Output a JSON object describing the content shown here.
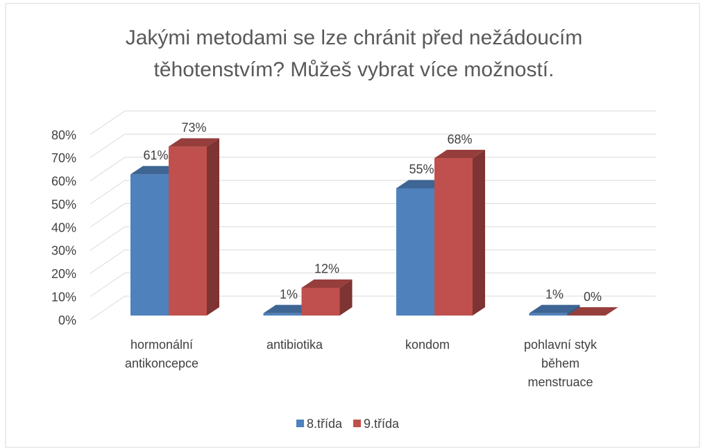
{
  "chart_data": {
    "type": "bar3d",
    "title": "Jakými metodami se lze chránit před nežádoucím těhotenstvím? Můžeš vybrat více možností.",
    "categories": [
      "hormonální antikoncepce",
      "antibiotika",
      "kondom",
      "pohlavní styk během menstruace"
    ],
    "series": [
      {
        "name": "8.třída",
        "color": "#4f81bd",
        "values": [
          61,
          1,
          55,
          1
        ],
        "value_labels": [
          "61%",
          "1%",
          "55%",
          "1%"
        ]
      },
      {
        "name": "9.třída",
        "color": "#c0504d",
        "values": [
          73,
          12,
          68,
          0
        ],
        "value_labels": [
          "73%",
          "12%",
          "68%",
          "0%"
        ]
      }
    ],
    "ylim": [
      0,
      80
    ],
    "yticks": [
      {
        "value": 0,
        "label": "0%"
      },
      {
        "value": 10,
        "label": "10%"
      },
      {
        "value": 20,
        "label": "20%"
      },
      {
        "value": 30,
        "label": "30%"
      },
      {
        "value": 40,
        "label": "40%"
      },
      {
        "value": 50,
        "label": "50%"
      },
      {
        "value": 60,
        "label": "60%"
      },
      {
        "value": 70,
        "label": "70%"
      },
      {
        "value": 80,
        "label": "80%"
      }
    ],
    "grid": true,
    "legend": "bottom"
  }
}
